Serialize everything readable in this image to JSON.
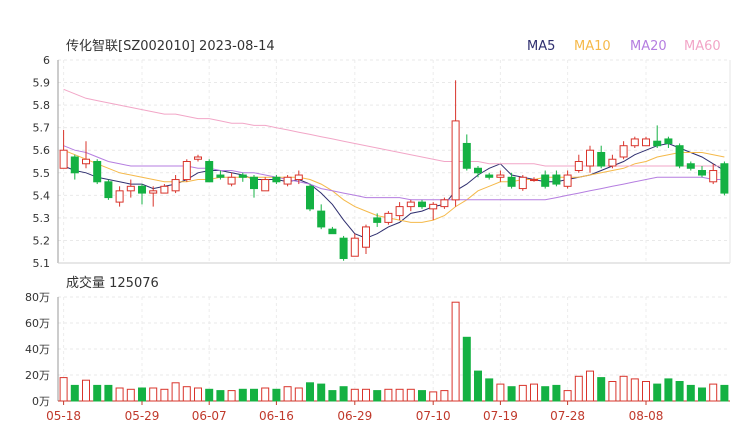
{
  "chart_data": {
    "type": "candlestick",
    "title": "传化智联[SZ002010] 2023-08-14",
    "legend": [
      {
        "name": "MA5",
        "color": "#2f2f6f"
      },
      {
        "name": "MA10",
        "color": "#f5b94a"
      },
      {
        "name": "MA20",
        "color": "#b57ee0"
      },
      {
        "name": "MA60",
        "color": "#f2a6c7"
      }
    ],
    "up_color": "#d9342b",
    "down_color": "#14b143",
    "price_axis": {
      "min": 5.1,
      "max": 6.0,
      "ticks": [
        "6",
        "5.9",
        "5.8",
        "5.7",
        "5.6",
        "5.5",
        "5.4",
        "5.3",
        "5.2",
        "5.1"
      ]
    },
    "volume_title": "成交量 125076",
    "volume_axis": {
      "min": 0,
      "max": 80,
      "unit": "万",
      "ticks": [
        "80万",
        "60万",
        "40万",
        "20万",
        "0万"
      ]
    },
    "date_labels": [
      {
        "index": 0,
        "label": "05-18"
      },
      {
        "index": 7,
        "label": "05-29"
      },
      {
        "index": 13,
        "label": "06-07"
      },
      {
        "index": 19,
        "label": "06-16"
      },
      {
        "index": 26,
        "label": "06-29"
      },
      {
        "index": 33,
        "label": "07-10"
      },
      {
        "index": 39,
        "label": "07-19"
      },
      {
        "index": 45,
        "label": "07-28"
      },
      {
        "index": 52,
        "label": "08-08"
      }
    ],
    "ohlc": [
      [
        5.52,
        5.6,
        5.52,
        5.69
      ],
      [
        5.57,
        5.5,
        5.47,
        5.58
      ],
      [
        5.54,
        5.56,
        5.52,
        5.64
      ],
      [
        5.55,
        5.46,
        5.45,
        5.56
      ],
      [
        5.46,
        5.39,
        5.38,
        5.47
      ],
      [
        5.37,
        5.42,
        5.35,
        5.44
      ],
      [
        5.42,
        5.44,
        5.39,
        5.47
      ],
      [
        5.44,
        5.41,
        5.36,
        5.45
      ],
      [
        5.41,
        5.42,
        5.35,
        5.44
      ],
      [
        5.41,
        5.44,
        5.41,
        5.45
      ],
      [
        5.42,
        5.47,
        5.41,
        5.49
      ],
      [
        5.47,
        5.55,
        5.46,
        5.56
      ],
      [
        5.56,
        5.57,
        5.55,
        5.58
      ],
      [
        5.55,
        5.46,
        5.46,
        5.56
      ],
      [
        5.49,
        5.48,
        5.47,
        5.51
      ],
      [
        5.45,
        5.48,
        5.44,
        5.5
      ],
      [
        5.49,
        5.48,
        5.46,
        5.5
      ],
      [
        5.48,
        5.43,
        5.39,
        5.49
      ],
      [
        5.42,
        5.47,
        5.42,
        5.48
      ],
      [
        5.48,
        5.46,
        5.45,
        5.49
      ],
      [
        5.45,
        5.48,
        5.44,
        5.49
      ],
      [
        5.47,
        5.49,
        5.45,
        5.51
      ],
      [
        5.44,
        5.34,
        5.33,
        5.45
      ],
      [
        5.33,
        5.26,
        5.25,
        5.36
      ],
      [
        5.25,
        5.23,
        5.23,
        5.26
      ],
      [
        5.21,
        5.12,
        5.11,
        5.22
      ],
      [
        5.13,
        5.21,
        5.13,
        5.23
      ],
      [
        5.17,
        5.26,
        5.14,
        5.27
      ],
      [
        5.3,
        5.28,
        5.26,
        5.32
      ],
      [
        5.28,
        5.32,
        5.27,
        5.33
      ],
      [
        5.31,
        5.35,
        5.29,
        5.37
      ],
      [
        5.35,
        5.37,
        5.33,
        5.38
      ],
      [
        5.37,
        5.35,
        5.34,
        5.38
      ],
      [
        5.34,
        5.36,
        5.29,
        5.37
      ],
      [
        5.35,
        5.38,
        5.34,
        5.39
      ],
      [
        5.38,
        5.73,
        5.35,
        5.91
      ],
      [
        5.63,
        5.52,
        5.51,
        5.67
      ],
      [
        5.52,
        5.5,
        5.48,
        5.53
      ],
      [
        5.49,
        5.48,
        5.47,
        5.5
      ],
      [
        5.48,
        5.49,
        5.46,
        5.51
      ],
      [
        5.48,
        5.44,
        5.43,
        5.5
      ],
      [
        5.43,
        5.48,
        5.42,
        5.49
      ],
      [
        5.47,
        5.47,
        5.46,
        5.48
      ],
      [
        5.49,
        5.44,
        5.43,
        5.51
      ],
      [
        5.49,
        5.45,
        5.44,
        5.51
      ],
      [
        5.44,
        5.49,
        5.43,
        5.51
      ],
      [
        5.51,
        5.55,
        5.5,
        5.58
      ],
      [
        5.53,
        5.6,
        5.5,
        5.62
      ],
      [
        5.59,
        5.53,
        5.52,
        5.62
      ],
      [
        5.53,
        5.56,
        5.52,
        5.58
      ],
      [
        5.57,
        5.62,
        5.56,
        5.64
      ],
      [
        5.62,
        5.65,
        5.61,
        5.66
      ],
      [
        5.62,
        5.65,
        5.62,
        5.66
      ],
      [
        5.64,
        5.62,
        5.61,
        5.71
      ],
      [
        5.65,
        5.63,
        5.61,
        5.66
      ],
      [
        5.62,
        5.53,
        5.52,
        5.63
      ],
      [
        5.54,
        5.52,
        5.51,
        5.55
      ],
      [
        5.51,
        5.49,
        5.48,
        5.53
      ],
      [
        5.46,
        5.51,
        5.45,
        5.54
      ],
      [
        5.54,
        5.41,
        5.4,
        5.55
      ]
    ],
    "volume": [
      18,
      12,
      16,
      12,
      12,
      10,
      9,
      10,
      10,
      9,
      14,
      11,
      10,
      9,
      8,
      8,
      9,
      9,
      10,
      9,
      11,
      10,
      14,
      13,
      8,
      11,
      9,
      9,
      8,
      9,
      9,
      9,
      8,
      7,
      8,
      76,
      49,
      23,
      17,
      13,
      11,
      12,
      13,
      11,
      12,
      8,
      19,
      23,
      18,
      15,
      19,
      17,
      15,
      13,
      17,
      15,
      12,
      10,
      13,
      12
    ],
    "ma5": [
      5.53,
      5.51,
      5.5,
      5.48,
      5.47,
      5.46,
      5.45,
      5.45,
      5.43,
      5.44,
      5.45,
      5.47,
      5.5,
      5.51,
      5.51,
      5.5,
      5.49,
      5.47,
      5.47,
      5.47,
      5.46,
      5.47,
      5.45,
      5.41,
      5.36,
      5.29,
      5.23,
      5.21,
      5.23,
      5.26,
      5.28,
      5.32,
      5.33,
      5.35,
      5.36,
      5.42,
      5.45,
      5.49,
      5.52,
      5.54,
      5.49,
      5.48,
      5.47,
      5.46,
      5.46,
      5.47,
      5.48,
      5.49,
      5.51,
      5.53,
      5.55,
      5.58,
      5.6,
      5.62,
      5.63,
      5.61,
      5.59,
      5.57,
      5.54,
      5.51
    ],
    "ma10": [
      5.6,
      5.58,
      5.56,
      5.54,
      5.52,
      5.5,
      5.49,
      5.48,
      5.47,
      5.46,
      5.46,
      5.46,
      5.47,
      5.47,
      5.48,
      5.48,
      5.48,
      5.48,
      5.48,
      5.48,
      5.48,
      5.48,
      5.47,
      5.45,
      5.42,
      5.38,
      5.35,
      5.33,
      5.31,
      5.3,
      5.29,
      5.28,
      5.28,
      5.29,
      5.31,
      5.35,
      5.38,
      5.42,
      5.44,
      5.46,
      5.46,
      5.47,
      5.47,
      5.48,
      5.48,
      5.48,
      5.48,
      5.49,
      5.5,
      5.51,
      5.52,
      5.54,
      5.55,
      5.57,
      5.58,
      5.59,
      5.59,
      5.59,
      5.58,
      5.57
    ],
    "ma20": [
      5.62,
      5.6,
      5.59,
      5.57,
      5.55,
      5.54,
      5.53,
      5.53,
      5.53,
      5.53,
      5.53,
      5.53,
      5.52,
      5.52,
      5.51,
      5.51,
      5.5,
      5.5,
      5.49,
      5.48,
      5.47,
      5.46,
      5.45,
      5.43,
      5.42,
      5.41,
      5.4,
      5.39,
      5.39,
      5.39,
      5.39,
      5.38,
      5.38,
      5.38,
      5.38,
      5.38,
      5.38,
      5.38,
      5.38,
      5.38,
      5.38,
      5.38,
      5.38,
      5.38,
      5.39,
      5.4,
      5.41,
      5.42,
      5.43,
      5.44,
      5.45,
      5.46,
      5.47,
      5.48,
      5.48,
      5.48,
      5.48,
      5.48,
      5.47,
      5.47
    ],
    "ma60": [
      5.87,
      5.85,
      5.83,
      5.82,
      5.81,
      5.8,
      5.79,
      5.78,
      5.77,
      5.76,
      5.76,
      5.75,
      5.74,
      5.74,
      5.73,
      5.72,
      5.72,
      5.71,
      5.71,
      5.7,
      5.69,
      5.68,
      5.67,
      5.66,
      5.65,
      5.64,
      5.63,
      5.62,
      5.61,
      5.6,
      5.59,
      5.58,
      5.57,
      5.56,
      5.55,
      5.55,
      5.55,
      5.55,
      5.54,
      5.54,
      5.54,
      5.54,
      5.54,
      5.53,
      5.53,
      5.53,
      5.53,
      5.53,
      5.53,
      5.53,
      5.53,
      5.53,
      5.53,
      5.53,
      5.53,
      5.53,
      5.53,
      5.53,
      5.53,
      5.53
    ]
  }
}
